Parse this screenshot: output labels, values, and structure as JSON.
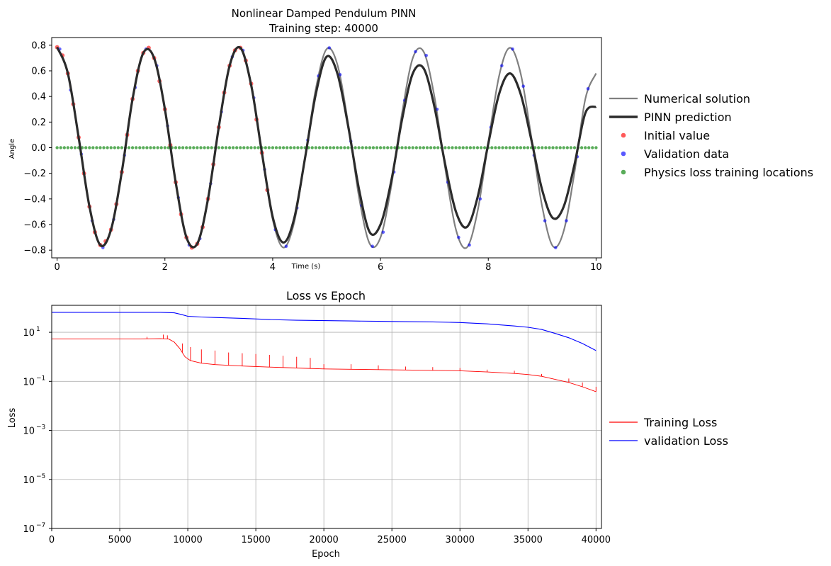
{
  "chart_data": [
    {
      "type": "line",
      "title": "Nonlinear Damped Pendulum PINN",
      "subtitle": "Training step: 40000",
      "xlabel": "Time (s)",
      "ylabel": "Angle",
      "xlim": [
        -0.1,
        10.1
      ],
      "ylim": [
        -0.86,
        0.86
      ],
      "xticks": [
        "0",
        "2",
        "4",
        "6",
        "8",
        "10"
      ],
      "yticks": [
        "−0.8",
        "−0.6",
        "−0.4",
        "−0.2",
        "0.0",
        "0.2",
        "0.4",
        "0.6",
        "0.8"
      ],
      "grid": false,
      "legend_position": "right",
      "series": [
        {
          "name": "Numerical solution",
          "kind": "line",
          "color": "#808080",
          "x": [
            0,
            0.2,
            0.4,
            0.6,
            0.8,
            1.0,
            1.2,
            1.4,
            1.6,
            1.8,
            2.0,
            2.2,
            2.4,
            2.6,
            2.8,
            3.0,
            3.2,
            3.4,
            3.6,
            3.8,
            4.0,
            4.2,
            4.4,
            4.6,
            4.8,
            5.0,
            5.2,
            5.4,
            5.6,
            5.8,
            6.0,
            6.2,
            6.4,
            6.6,
            6.8,
            7.0,
            7.2,
            7.4,
            7.6,
            7.8,
            8.0,
            8.2,
            8.4,
            8.6,
            8.8,
            9.0,
            9.2,
            9.4,
            9.6,
            9.8,
            10.0
          ],
          "y": [
            0.785,
            0.58,
            0.08,
            -0.46,
            -0.76,
            -0.64,
            -0.19,
            0.38,
            0.74,
            0.7,
            0.3,
            -0.27,
            -0.7,
            -0.75,
            -0.4,
            0.16,
            0.64,
            0.78,
            0.5,
            -0.04,
            -0.56,
            -0.78,
            -0.58,
            -0.08,
            0.46,
            0.77,
            0.65,
            0.19,
            -0.38,
            -0.75,
            -0.7,
            -0.3,
            0.27,
            0.7,
            0.75,
            0.4,
            -0.16,
            -0.64,
            -0.78,
            -0.5,
            0.04,
            0.56,
            0.78,
            0.58,
            0.08,
            -0.46,
            -0.77,
            -0.65,
            -0.19,
            0.38,
            0.58
          ]
        },
        {
          "name": "PINN prediction",
          "kind": "line",
          "color": "#2b2b2b",
          "x": [
            0,
            0.2,
            0.4,
            0.6,
            0.8,
            1.0,
            1.2,
            1.4,
            1.6,
            1.8,
            2.0,
            2.2,
            2.4,
            2.6,
            2.8,
            3.0,
            3.2,
            3.4,
            3.6,
            3.8,
            4.0,
            4.2,
            4.4,
            4.6,
            4.8,
            5.0,
            5.2,
            5.4,
            5.6,
            5.8,
            6.0,
            6.2,
            6.4,
            6.6,
            6.8,
            7.0,
            7.2,
            7.4,
            7.6,
            7.8,
            8.0,
            8.2,
            8.4,
            8.6,
            8.8,
            9.0,
            9.2,
            9.4,
            9.6,
            9.8,
            10.0
          ],
          "y": [
            0.785,
            0.58,
            0.08,
            -0.46,
            -0.76,
            -0.64,
            -0.19,
            0.38,
            0.74,
            0.7,
            0.3,
            -0.27,
            -0.7,
            -0.75,
            -0.4,
            0.16,
            0.64,
            0.78,
            0.49,
            -0.04,
            -0.54,
            -0.74,
            -0.55,
            -0.08,
            0.42,
            0.71,
            0.58,
            0.17,
            -0.32,
            -0.66,
            -0.6,
            -0.26,
            0.22,
            0.58,
            0.62,
            0.32,
            -0.13,
            -0.5,
            -0.62,
            -0.39,
            0.03,
            0.42,
            0.58,
            0.42,
            0.06,
            -0.33,
            -0.55,
            -0.46,
            -0.13,
            0.27,
            0.32
          ]
        },
        {
          "name": "Initial value",
          "kind": "scatter",
          "color": "#ff0000",
          "x": [
            0.0,
            0.1,
            0.2,
            0.3,
            0.4,
            0.5,
            0.6,
            0.7,
            0.8,
            0.9,
            1.0,
            1.1,
            1.2,
            1.3,
            1.4,
            1.5,
            1.6,
            1.7,
            1.8,
            1.9,
            2.0,
            2.1,
            2.2,
            2.3,
            2.4,
            2.5,
            2.6,
            2.7,
            2.8,
            2.9,
            3.0,
            3.1,
            3.2,
            3.3,
            3.4,
            3.5,
            3.6,
            3.7,
            3.8,
            3.9
          ],
          "y": [
            0.785,
            0.72,
            0.58,
            0.34,
            0.08,
            -0.2,
            -0.46,
            -0.66,
            -0.76,
            -0.73,
            -0.64,
            -0.44,
            -0.19,
            0.1,
            0.38,
            0.6,
            0.74,
            0.78,
            0.7,
            0.52,
            0.3,
            0.02,
            -0.27,
            -0.52,
            -0.7,
            -0.78,
            -0.75,
            -0.62,
            -0.4,
            -0.13,
            0.16,
            0.43,
            0.64,
            0.76,
            0.78,
            0.68,
            0.5,
            0.22,
            -0.04,
            -0.33
          ]
        },
        {
          "name": "Validation data",
          "kind": "scatter",
          "color": "#0000ff",
          "x": [
            0.05,
            0.25,
            0.45,
            0.65,
            0.85,
            1.05,
            1.25,
            1.45,
            1.65,
            1.85,
            2.05,
            2.25,
            2.45,
            2.65,
            2.85,
            3.05,
            3.25,
            3.45,
            3.65,
            3.85,
            4.05,
            4.25,
            4.45,
            4.65,
            4.85,
            5.05,
            5.25,
            5.45,
            5.65,
            5.85,
            6.05,
            6.25,
            6.45,
            6.65,
            6.85,
            7.05,
            7.25,
            7.45,
            7.65,
            7.85,
            8.05,
            8.25,
            8.45,
            8.65,
            8.85,
            9.05,
            9.25,
            9.45,
            9.65,
            9.85
          ],
          "y": [
            0.77,
            0.45,
            -0.05,
            -0.57,
            -0.78,
            -0.56,
            -0.06,
            0.47,
            0.77,
            0.64,
            0.17,
            -0.39,
            -0.76,
            -0.71,
            -0.28,
            0.28,
            0.71,
            0.76,
            0.39,
            -0.17,
            -0.64,
            -0.77,
            -0.47,
            0.06,
            0.56,
            0.78,
            0.57,
            0.05,
            -0.45,
            -0.77,
            -0.66,
            -0.19,
            0.37,
            0.75,
            0.72,
            0.3,
            -0.27,
            -0.7,
            -0.76,
            -0.4,
            0.16,
            0.64,
            0.77,
            0.48,
            -0.06,
            -0.57,
            -0.78,
            -0.57,
            -0.07,
            0.46
          ]
        },
        {
          "name": "Physics loss training locations",
          "kind": "scatter",
          "color": "#008000",
          "x_range": [
            0,
            10
          ],
          "count": 151,
          "y_value": 0.0
        }
      ]
    },
    {
      "type": "line",
      "title": "Loss vs Epoch",
      "xlabel": "Epoch",
      "ylabel": "Loss",
      "yscale": "log",
      "xlim": [
        0,
        40400
      ],
      "ylim_exp": [
        -7,
        2.1
      ],
      "xticks": [
        "0",
        "5000",
        "10000",
        "15000",
        "20000",
        "25000",
        "30000",
        "35000",
        "40000"
      ],
      "yticks": [
        {
          "base": "10",
          "exp": "1"
        },
        {
          "base": "10",
          "exp": "−1"
        },
        {
          "base": "10",
          "exp": "−3"
        },
        {
          "base": "10",
          "exp": "−5"
        },
        {
          "base": "10",
          "exp": "−7"
        }
      ],
      "grid": true,
      "legend_position": "right",
      "series": [
        {
          "name": "Training Loss",
          "color": "#ff0000",
          "x": [
            0,
            2000,
            4000,
            6000,
            8000,
            8600,
            9000,
            9400,
            9800,
            10200,
            11000,
            12000,
            14000,
            16000,
            18000,
            20000,
            22000,
            24000,
            26000,
            28000,
            30000,
            32000,
            34000,
            35000,
            36000,
            37000,
            38000,
            39000,
            40000
          ],
          "y": [
            5.3,
            5.3,
            5.3,
            5.3,
            5.5,
            5.3,
            4.0,
            2.2,
            1.0,
            0.7,
            0.55,
            0.48,
            0.42,
            0.38,
            0.35,
            0.32,
            0.31,
            0.3,
            0.29,
            0.28,
            0.27,
            0.24,
            0.21,
            0.19,
            0.16,
            0.12,
            0.09,
            0.06,
            0.038
          ],
          "spikes": [
            {
              "x": 7000,
              "y": 6.5
            },
            {
              "x": 8200,
              "y": 8.0
            },
            {
              "x": 8500,
              "y": 7.5
            },
            {
              "x": 9600,
              "y": 3.5
            },
            {
              "x": 10200,
              "y": 2.5
            },
            {
              "x": 11000,
              "y": 2.0
            },
            {
              "x": 12000,
              "y": 1.8
            },
            {
              "x": 13000,
              "y": 1.5
            },
            {
              "x": 14000,
              "y": 1.4
            },
            {
              "x": 15000,
              "y": 1.3
            },
            {
              "x": 16000,
              "y": 1.2
            },
            {
              "x": 17000,
              "y": 1.1
            },
            {
              "x": 18000,
              "y": 1.0
            },
            {
              "x": 19000,
              "y": 0.9
            },
            {
              "x": 20000,
              "y": 0.5
            },
            {
              "x": 22000,
              "y": 0.5
            },
            {
              "x": 24000,
              "y": 0.45
            },
            {
              "x": 26000,
              "y": 0.4
            },
            {
              "x": 28000,
              "y": 0.38
            },
            {
              "x": 30000,
              "y": 0.35
            },
            {
              "x": 32000,
              "y": 0.3
            },
            {
              "x": 34000,
              "y": 0.27
            },
            {
              "x": 36000,
              "y": 0.2
            },
            {
              "x": 38000,
              "y": 0.13
            },
            {
              "x": 39000,
              "y": 0.09
            },
            {
              "x": 40000,
              "y": 0.06
            }
          ]
        },
        {
          "name": "validation Loss",
          "color": "#0000ff",
          "x": [
            0,
            4000,
            8000,
            9000,
            9600,
            10000,
            11000,
            12000,
            14000,
            16000,
            18000,
            20000,
            22000,
            24000,
            26000,
            28000,
            30000,
            32000,
            34000,
            35000,
            36000,
            37000,
            38000,
            39000,
            40000
          ],
          "y": [
            65,
            65,
            65,
            62,
            52,
            45,
            42,
            40,
            37,
            33,
            31,
            30,
            29,
            28,
            27,
            26.5,
            25,
            22,
            18,
            16,
            13,
            9,
            6,
            3.5,
            1.8
          ]
        }
      ]
    }
  ]
}
